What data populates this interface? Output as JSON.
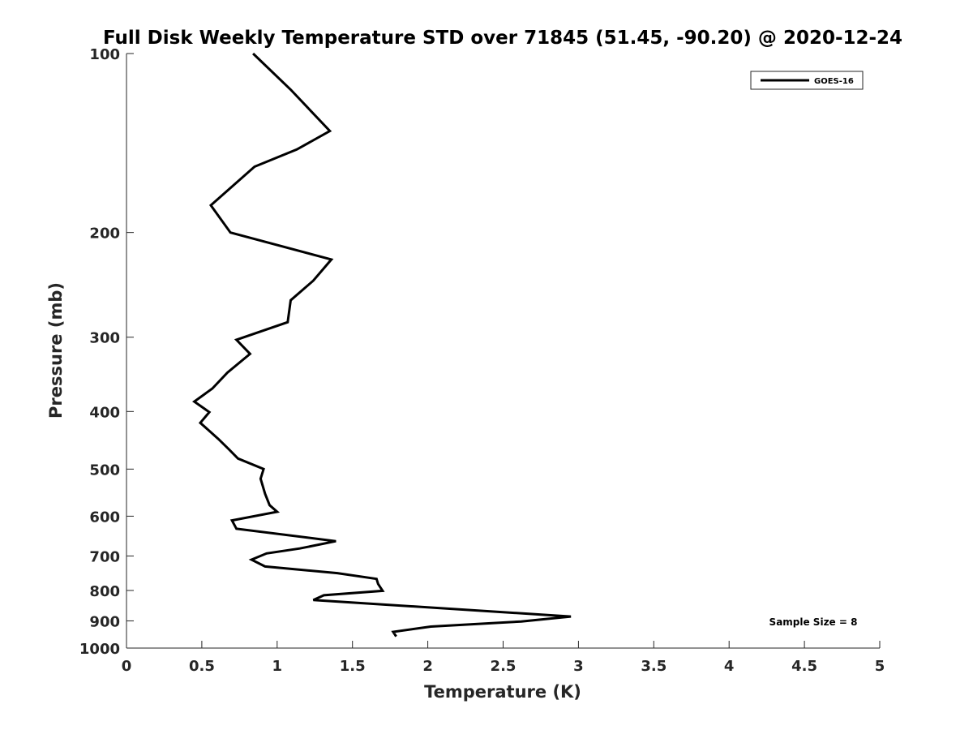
{
  "chart_data": {
    "type": "line",
    "title": "Full Disk Weekly Temperature STD over 71845 (51.45, -90.20) @ 2020-12-24",
    "xlabel": "Temperature (K)",
    "ylabel": "Pressure (mb)",
    "xlim": [
      0,
      5
    ],
    "ylim": [
      100,
      1000
    ],
    "y_scale": "log",
    "y_reversed": true,
    "x_ticks": [
      "0",
      "0.5",
      "1",
      "1.5",
      "2",
      "2.5",
      "3",
      "3.5",
      "4",
      "4.5",
      "5"
    ],
    "y_ticks": [
      "100",
      "200",
      "300",
      "400",
      "500",
      "600",
      "700",
      "800",
      "900",
      "1000"
    ],
    "grid": false,
    "legend_position": "top-right",
    "annotation": "Sample Size = 8",
    "line_color": "#000000",
    "series": [
      {
        "name": "GOES-16",
        "points": [
          [
            0.84,
            100
          ],
          [
            1.09,
            115
          ],
          [
            1.35,
            135
          ],
          [
            1.13,
            145
          ],
          [
            0.85,
            155
          ],
          [
            0.56,
            180
          ],
          [
            0.69,
            200
          ],
          [
            1.36,
            222
          ],
          [
            1.24,
            241
          ],
          [
            1.09,
            260
          ],
          [
            1.07,
            283
          ],
          [
            0.73,
            303
          ],
          [
            0.82,
            320
          ],
          [
            0.67,
            344
          ],
          [
            0.57,
            366
          ],
          [
            0.45,
            385
          ],
          [
            0.55,
            401
          ],
          [
            0.49,
            418
          ],
          [
            0.61,
            445
          ],
          [
            0.68,
            463
          ],
          [
            0.74,
            480
          ],
          [
            0.91,
            500
          ],
          [
            0.89,
            519
          ],
          [
            0.92,
            550
          ],
          [
            0.95,
            575
          ],
          [
            1.0,
            590
          ],
          [
            0.7,
            610
          ],
          [
            0.73,
            630
          ],
          [
            1.39,
            661
          ],
          [
            1.15,
            680
          ],
          [
            0.93,
            693
          ],
          [
            0.83,
            710
          ],
          [
            0.92,
            729
          ],
          [
            1.4,
            748
          ],
          [
            1.66,
            765
          ],
          [
            1.67,
            780
          ],
          [
            1.7,
            801
          ],
          [
            1.31,
            815
          ],
          [
            1.24,
            830
          ],
          [
            2.95,
            885
          ],
          [
            2.62,
            902
          ],
          [
            2.02,
            920
          ],
          [
            1.77,
            939
          ],
          [
            1.79,
            956
          ]
        ]
      }
    ]
  }
}
